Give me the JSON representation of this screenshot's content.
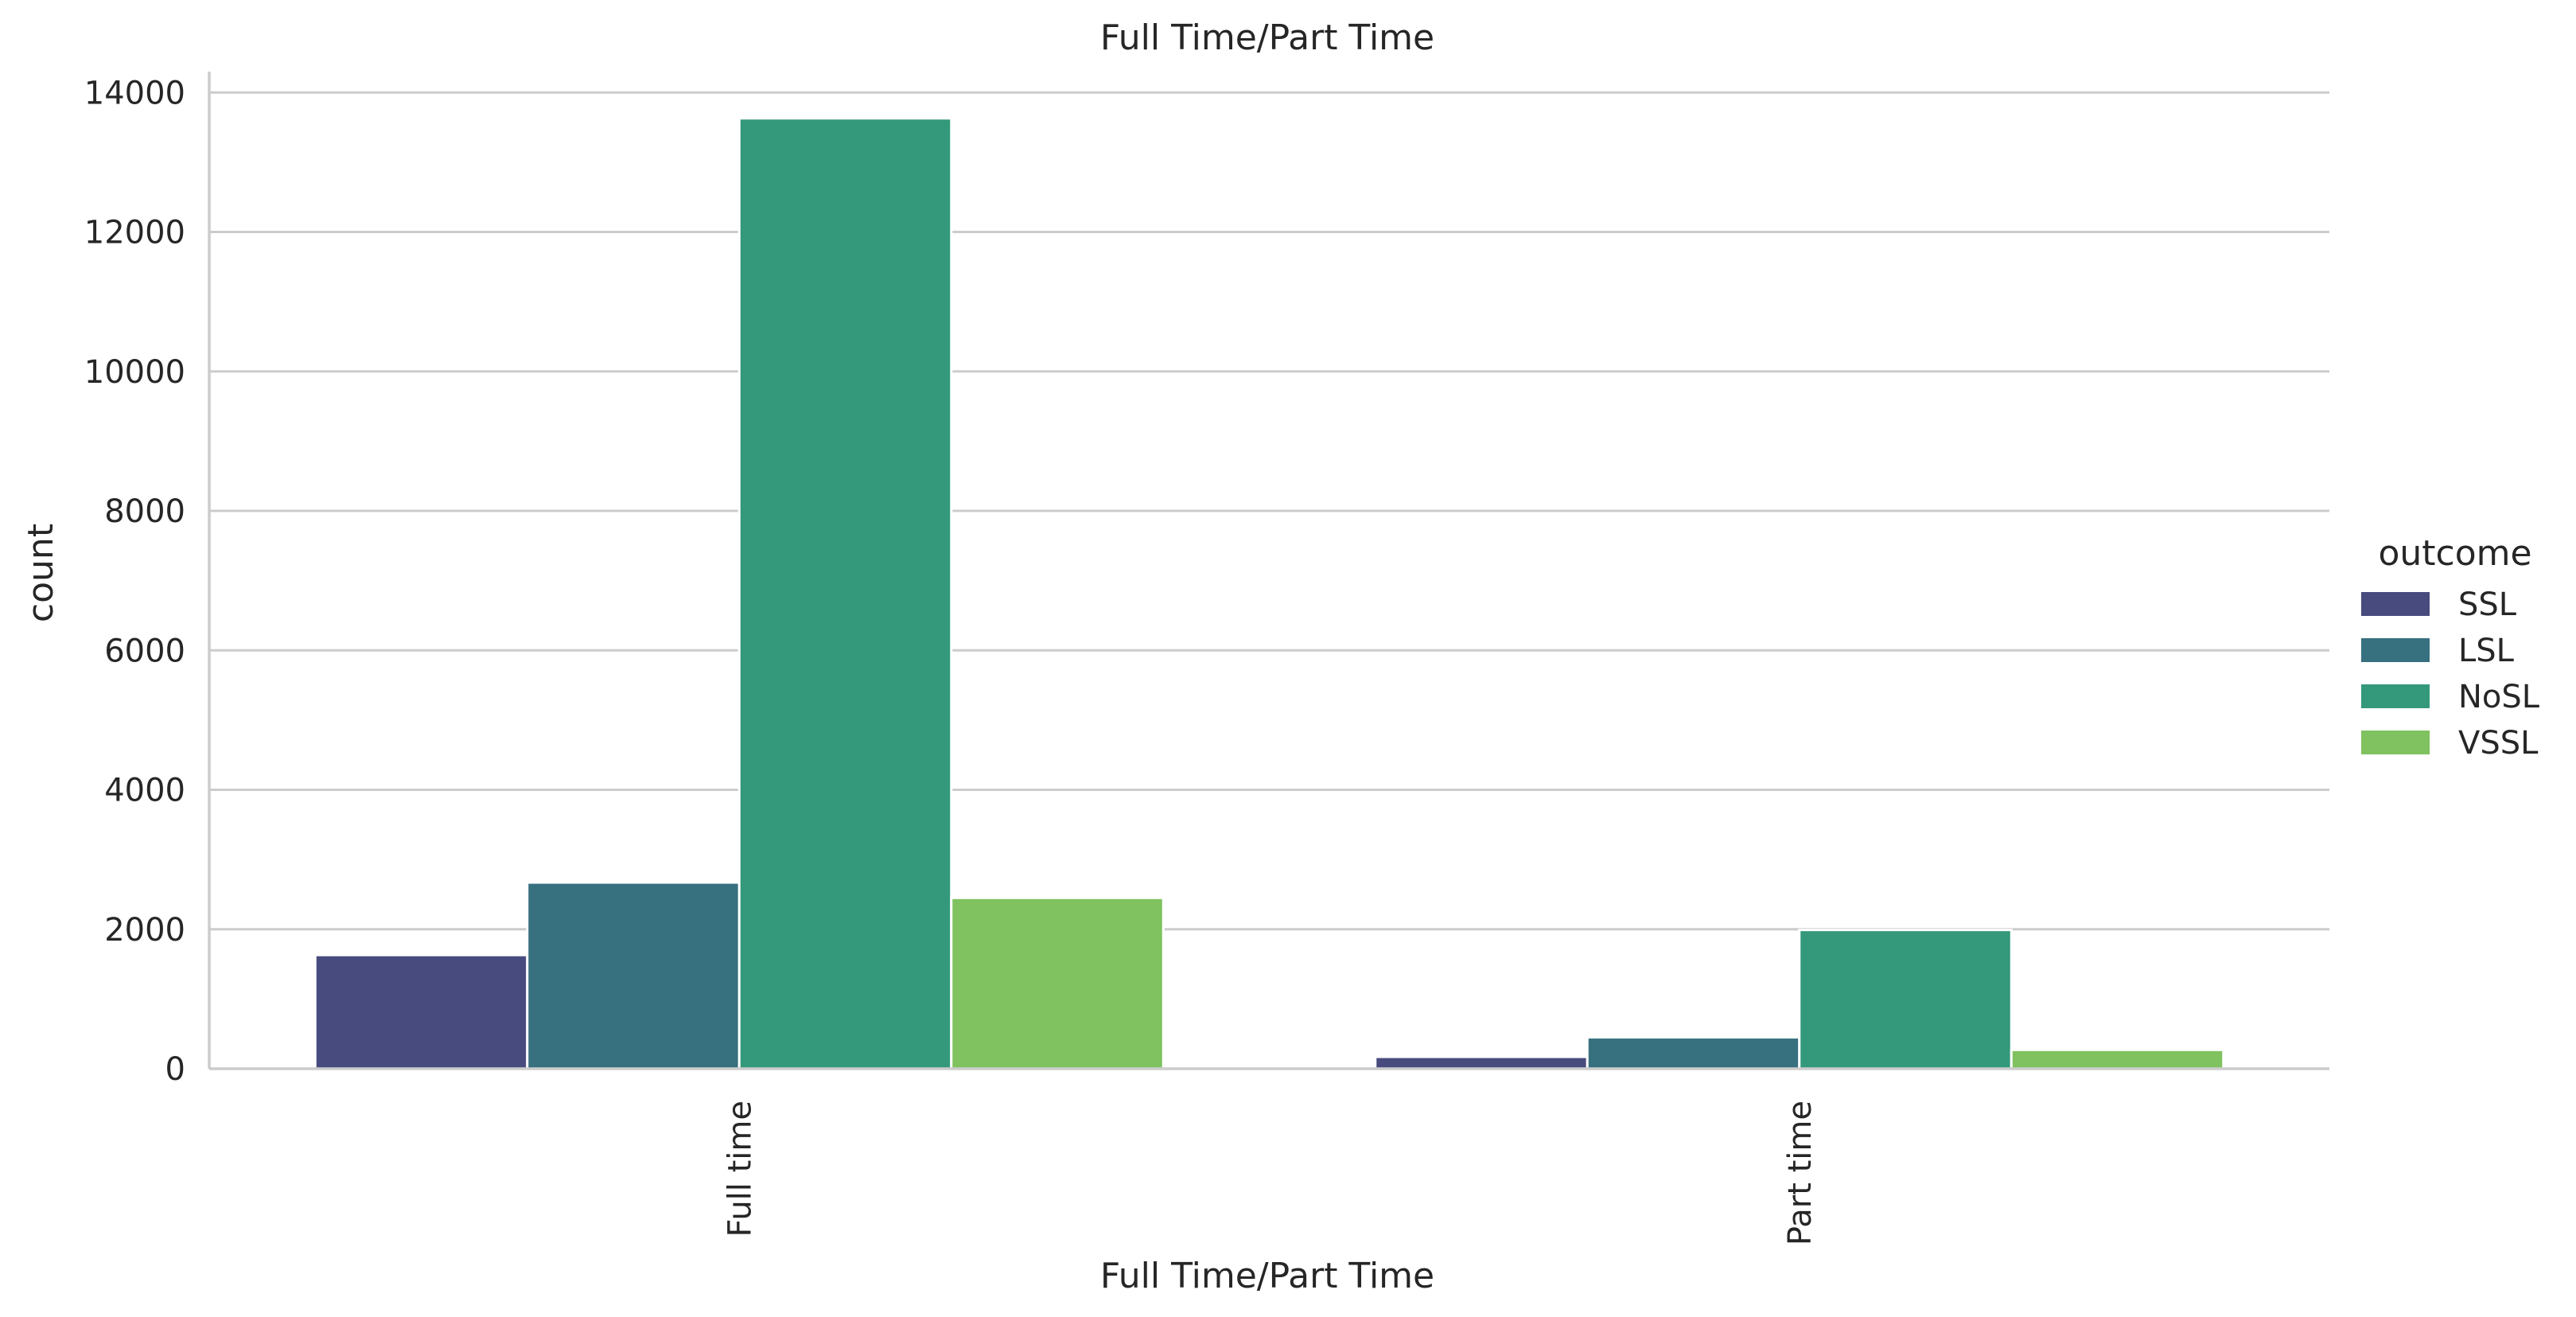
{
  "chart_data": {
    "type": "bar",
    "title": "Full Time/Part Time",
    "xlabel": "Full Time/Part Time",
    "ylabel": "count",
    "categories": [
      "Full time",
      "Part time"
    ],
    "series": [
      {
        "name": "SSL",
        "color": "#484b7e",
        "values": [
          1630,
          170
        ]
      },
      {
        "name": "LSL",
        "color": "#37707f",
        "values": [
          2670,
          450
        ]
      },
      {
        "name": "NoSL",
        "color": "#33997a",
        "values": [
          13630,
          1990
        ]
      },
      {
        "name": "VSSL",
        "color": "#7fc25f",
        "values": [
          2450,
          270
        ]
      }
    ],
    "ylim": [
      0,
      14300
    ],
    "yticks": [
      0,
      2000,
      4000,
      6000,
      8000,
      10000,
      12000,
      14000
    ],
    "grid": "horizontal",
    "legend": {
      "title": "outcome",
      "placement": "right"
    }
  }
}
